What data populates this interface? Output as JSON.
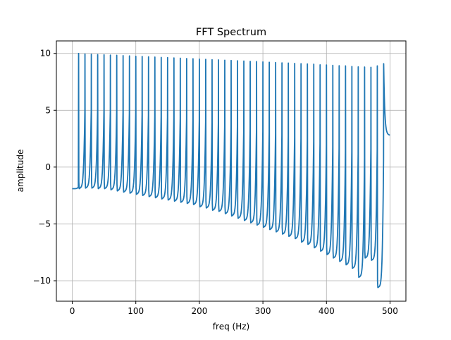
{
  "chart_data": {
    "type": "line",
    "title": "FFT Spectrum",
    "xlabel": "freq (Hz)",
    "ylabel": "amplitude",
    "xlim": [
      -25,
      525
    ],
    "ylim": [
      -11.8,
      11.1
    ],
    "x_ticks": [
      0,
      100,
      200,
      300,
      400,
      500
    ],
    "y_ticks": [
      -10,
      -5,
      0,
      5,
      10
    ],
    "grid": true,
    "series": [
      {
        "color": "#1f77b4",
        "x_start": 0,
        "x_end": 500,
        "baseline_start": -1.9,
        "peak_frequencies_hz": [
          10,
          20,
          30,
          40,
          50,
          60,
          70,
          80,
          90,
          100,
          110,
          120,
          130,
          140,
          150,
          160,
          170,
          180,
          190,
          200,
          210,
          220,
          230,
          240,
          250,
          260,
          270,
          280,
          290,
          300,
          310,
          320,
          330,
          340,
          350,
          360,
          370,
          380,
          390,
          400,
          410,
          420,
          430,
          440,
          450,
          460,
          470,
          480,
          490
        ],
        "peak_values": [
          10.0,
          9.95,
          9.93,
          9.9,
          9.88,
          9.85,
          9.83,
          9.8,
          9.78,
          9.75,
          9.73,
          9.7,
          9.68,
          9.65,
          9.63,
          9.6,
          9.58,
          9.55,
          9.53,
          9.5,
          9.48,
          9.45,
          9.43,
          9.4,
          9.38,
          9.35,
          9.33,
          9.3,
          9.28,
          9.25,
          9.22,
          9.2,
          9.17,
          9.15,
          9.12,
          9.1,
          9.07,
          9.05,
          9.0,
          8.98,
          8.95,
          8.92,
          8.9,
          8.85,
          8.82,
          8.8,
          8.78,
          8.9,
          9.1
        ],
        "trough_values": [
          -1.9,
          -1.85,
          -1.85,
          -1.9,
          -1.9,
          -2.0,
          -2.1,
          -2.2,
          -2.3,
          -2.4,
          -2.5,
          -2.6,
          -2.7,
          -2.8,
          -2.9,
          -3.0,
          -3.1,
          -3.2,
          -3.3,
          -3.5,
          -3.6,
          -3.8,
          -3.9,
          -4.1,
          -4.3,
          -4.5,
          -4.7,
          -4.9,
          -5.1,
          -5.3,
          -5.5,
          -5.7,
          -5.9,
          -6.1,
          -6.3,
          -6.6,
          -6.8,
          -7.1,
          -7.4,
          -7.7,
          -8.0,
          -8.3,
          -8.6,
          -8.9,
          -9.7,
          -8.0,
          -8.2,
          -10.6,
          -3.6
        ],
        "end_value": 2.8
      }
    ]
  }
}
